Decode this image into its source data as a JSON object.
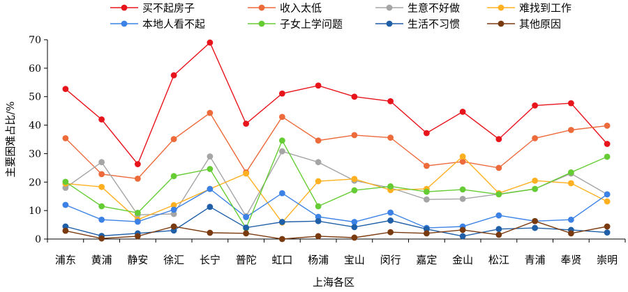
{
  "chart_data": {
    "type": "line",
    "title": "",
    "xlabel": "上海各区",
    "ylabel": "主要困难占比/%",
    "ylim": [
      0,
      70
    ],
    "yticks": [
      0,
      10,
      20,
      30,
      40,
      50,
      60,
      70
    ],
    "grid": false,
    "legend_position": "top",
    "categories": [
      "浦东",
      "黄浦",
      "静安",
      "徐汇",
      "长宁",
      "普陀",
      "虹口",
      "杨浦",
      "宝山",
      "闵行",
      "嘉定",
      "金山",
      "松江",
      "青浦",
      "奉贤",
      "崇明"
    ],
    "series": [
      {
        "name": "买不起房子",
        "color": "#e8141c",
        "values": [
          52.7,
          42.0,
          26.3,
          57.5,
          69.0,
          40.5,
          51.1,
          53.9,
          50.0,
          48.4,
          37.2,
          44.7,
          35.1,
          46.9,
          47.7,
          33.4
        ]
      },
      {
        "name": "收入太低",
        "color": "#ed6a3a",
        "values": [
          35.4,
          22.8,
          21.2,
          35.1,
          44.3,
          23.4,
          42.9,
          34.6,
          36.5,
          35.6,
          25.7,
          27.2,
          25.0,
          35.4,
          38.3,
          39.8
        ]
      },
      {
        "name": "生意不好做",
        "color": "#a5a5a5",
        "values": [
          18.0,
          27.0,
          8.5,
          8.8,
          29.0,
          8.0,
          30.8,
          27.0,
          20.5,
          18.0,
          13.9,
          14.1,
          15.8,
          17.6,
          23.0,
          15.7
        ]
      },
      {
        "name": "难找到工作",
        "color": "#ffb020",
        "values": [
          19.5,
          18.3,
          6.8,
          11.9,
          17.6,
          23.0,
          5.8,
          20.3,
          21.1,
          17.2,
          17.6,
          29.0,
          16.1,
          20.5,
          19.6,
          13.2
        ]
      },
      {
        "name": "本地人看不起",
        "color": "#3c82e6",
        "values": [
          12.0,
          6.8,
          6.1,
          10.3,
          17.6,
          7.7,
          16.1,
          7.8,
          6.0,
          9.3,
          3.9,
          4.4,
          8.3,
          6.3,
          6.8,
          15.7
        ]
      },
      {
        "name": "子女上学问题",
        "color": "#66cc33",
        "values": [
          20.1,
          11.5,
          9.2,
          22.1,
          24.6,
          3.8,
          34.6,
          11.5,
          17.1,
          18.5,
          16.6,
          17.4,
          15.7,
          17.6,
          23.4,
          28.9
        ]
      },
      {
        "name": "生活不习惯",
        "color": "#1f5fa8",
        "values": [
          4.4,
          1.1,
          2.0,
          3.0,
          11.3,
          4.0,
          6.0,
          6.3,
          4.2,
          6.5,
          3.5,
          1.0,
          3.5,
          3.9,
          3.2,
          2.3
        ]
      },
      {
        "name": "其他原因",
        "color": "#7a3a10",
        "values": [
          2.9,
          0.2,
          1.0,
          4.4,
          2.2,
          2.0,
          0.0,
          1.0,
          0.5,
          2.4,
          2.0,
          3.2,
          1.5,
          6.3,
          2.0,
          4.4
        ]
      }
    ]
  }
}
